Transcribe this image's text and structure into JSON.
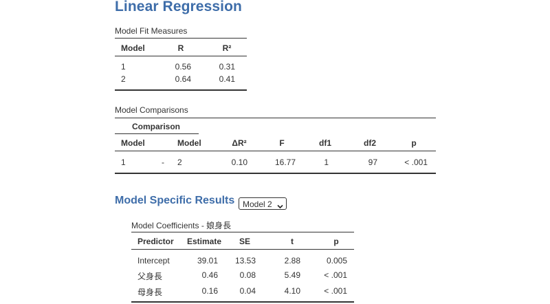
{
  "page": {
    "title": "Linear Regression"
  },
  "model_fit": {
    "caption": "Model Fit Measures",
    "headers": [
      "Model",
      "R",
      "R²"
    ],
    "rows": [
      [
        "1",
        "0.56",
        "0.31"
      ],
      [
        "2",
        "0.64",
        "0.41"
      ]
    ]
  },
  "model_comparisons": {
    "caption": "Model Comparisons",
    "group_header": "Comparison",
    "headers": [
      "Model",
      "Model",
      "ΔR²",
      "F",
      "df1",
      "df2",
      "p"
    ],
    "rows": [
      [
        "1",
        "-",
        "2",
        "0.10",
        "16.77",
        "1",
        "97",
        "< .001"
      ]
    ]
  },
  "specific_results": {
    "heading": "Model Specific Results",
    "selected_model": "Model 2",
    "coefficients": {
      "caption": "Model Coefficients - 娘身長",
      "headers": [
        "Predictor",
        "Estimate",
        "SE",
        "t",
        "p"
      ],
      "rows": [
        [
          "Intercept",
          "39.01",
          "13.53",
          "2.88",
          "0.005"
        ],
        [
          "父身長",
          "0.46",
          "0.08",
          "5.49",
          "< .001"
        ],
        [
          "母身長",
          "0.16",
          "0.04",
          "4.10",
          "< .001"
        ]
      ]
    }
  }
}
